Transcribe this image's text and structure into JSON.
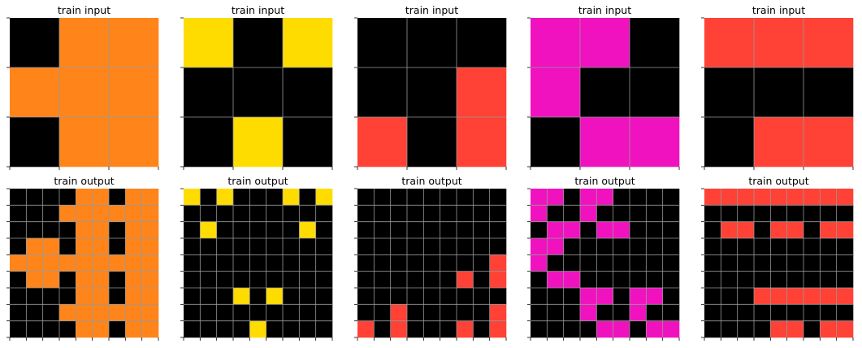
{
  "palette": {
    "0": "#000000",
    "2": "#FF4136",
    "4": "#FFDC00",
    "6": "#F012BE",
    "7": "#FF851B"
  },
  "examples": [
    {
      "input": {
        "title": "train input",
        "grid": [
          [
            0,
            7,
            7
          ],
          [
            7,
            7,
            7
          ],
          [
            0,
            7,
            7
          ]
        ]
      },
      "output": {
        "title": "train output",
        "grid": [
          [
            0,
            0,
            0,
            0,
            7,
            7,
            0,
            7,
            7
          ],
          [
            0,
            0,
            0,
            7,
            7,
            7,
            7,
            7,
            7
          ],
          [
            0,
            0,
            0,
            0,
            7,
            7,
            0,
            7,
            7
          ],
          [
            0,
            7,
            7,
            0,
            7,
            7,
            0,
            7,
            7
          ],
          [
            7,
            7,
            7,
            7,
            7,
            7,
            7,
            7,
            7
          ],
          [
            0,
            7,
            7,
            0,
            7,
            7,
            0,
            7,
            7
          ],
          [
            0,
            0,
            0,
            0,
            7,
            7,
            0,
            7,
            7
          ],
          [
            0,
            0,
            0,
            7,
            7,
            7,
            7,
            7,
            7
          ],
          [
            0,
            0,
            0,
            0,
            7,
            7,
            0,
            7,
            7
          ]
        ]
      }
    },
    {
      "input": {
        "title": "train input",
        "grid": [
          [
            4,
            0,
            4
          ],
          [
            0,
            0,
            0
          ],
          [
            0,
            4,
            0
          ]
        ]
      },
      "output": {
        "title": "train output",
        "grid": [
          [
            4,
            0,
            4,
            0,
            0,
            0,
            4,
            0,
            4
          ],
          [
            0,
            0,
            0,
            0,
            0,
            0,
            0,
            0,
            0
          ],
          [
            0,
            4,
            0,
            0,
            0,
            0,
            0,
            4,
            0
          ],
          [
            0,
            0,
            0,
            0,
            0,
            0,
            0,
            0,
            0
          ],
          [
            0,
            0,
            0,
            0,
            0,
            0,
            0,
            0,
            0
          ],
          [
            0,
            0,
            0,
            0,
            0,
            0,
            0,
            0,
            0
          ],
          [
            0,
            0,
            0,
            4,
            0,
            4,
            0,
            0,
            0
          ],
          [
            0,
            0,
            0,
            0,
            0,
            0,
            0,
            0,
            0
          ],
          [
            0,
            0,
            0,
            0,
            4,
            0,
            0,
            0,
            0
          ]
        ]
      }
    },
    {
      "input": {
        "title": "train input",
        "grid": [
          [
            0,
            0,
            0
          ],
          [
            0,
            0,
            2
          ],
          [
            2,
            0,
            2
          ]
        ]
      },
      "output": {
        "title": "train output",
        "grid": [
          [
            0,
            0,
            0,
            0,
            0,
            0,
            0,
            0,
            0
          ],
          [
            0,
            0,
            0,
            0,
            0,
            0,
            0,
            0,
            0
          ],
          [
            0,
            0,
            0,
            0,
            0,
            0,
            0,
            0,
            0
          ],
          [
            0,
            0,
            0,
            0,
            0,
            0,
            0,
            0,
            0
          ],
          [
            0,
            0,
            0,
            0,
            0,
            0,
            0,
            0,
            2
          ],
          [
            0,
            0,
            0,
            0,
            0,
            0,
            2,
            0,
            2
          ],
          [
            0,
            0,
            0,
            0,
            0,
            0,
            0,
            0,
            0
          ],
          [
            0,
            0,
            2,
            0,
            0,
            0,
            0,
            0,
            2
          ],
          [
            2,
            0,
            2,
            0,
            0,
            0,
            2,
            0,
            2
          ]
        ]
      }
    },
    {
      "input": {
        "title": "train input",
        "grid": [
          [
            6,
            6,
            0
          ],
          [
            6,
            0,
            0
          ],
          [
            0,
            6,
            6
          ]
        ]
      },
      "output": {
        "title": "train output",
        "grid": [
          [
            6,
            6,
            0,
            6,
            6,
            0,
            0,
            0,
            0
          ],
          [
            6,
            0,
            0,
            6,
            0,
            0,
            0,
            0,
            0
          ],
          [
            0,
            6,
            6,
            0,
            6,
            6,
            0,
            0,
            0
          ],
          [
            6,
            6,
            0,
            0,
            0,
            0,
            0,
            0,
            0
          ],
          [
            6,
            0,
            0,
            0,
            0,
            0,
            0,
            0,
            0
          ],
          [
            0,
            6,
            6,
            0,
            0,
            0,
            0,
            0,
            0
          ],
          [
            0,
            0,
            0,
            6,
            6,
            0,
            6,
            6,
            0
          ],
          [
            0,
            0,
            0,
            6,
            0,
            0,
            6,
            0,
            0
          ],
          [
            0,
            0,
            0,
            0,
            6,
            6,
            0,
            6,
            6
          ]
        ]
      }
    },
    {
      "input": {
        "title": "train input",
        "grid": [
          [
            2,
            2,
            2
          ],
          [
            0,
            0,
            0
          ],
          [
            0,
            2,
            2
          ]
        ]
      },
      "output": {
        "title": "train output",
        "grid": [
          [
            2,
            2,
            2,
            2,
            2,
            2,
            2,
            2,
            2
          ],
          [
            0,
            0,
            0,
            0,
            0,
            0,
            0,
            0,
            0
          ],
          [
            0,
            2,
            2,
            0,
            2,
            2,
            0,
            2,
            2
          ],
          [
            0,
            0,
            0,
            0,
            0,
            0,
            0,
            0,
            0
          ],
          [
            0,
            0,
            0,
            0,
            0,
            0,
            0,
            0,
            0
          ],
          [
            0,
            0,
            0,
            0,
            0,
            0,
            0,
            0,
            0
          ],
          [
            0,
            0,
            0,
            2,
            2,
            2,
            2,
            2,
            2
          ],
          [
            0,
            0,
            0,
            0,
            0,
            0,
            0,
            0,
            0
          ],
          [
            0,
            0,
            0,
            0,
            2,
            2,
            0,
            2,
            2
          ]
        ]
      }
    }
  ]
}
